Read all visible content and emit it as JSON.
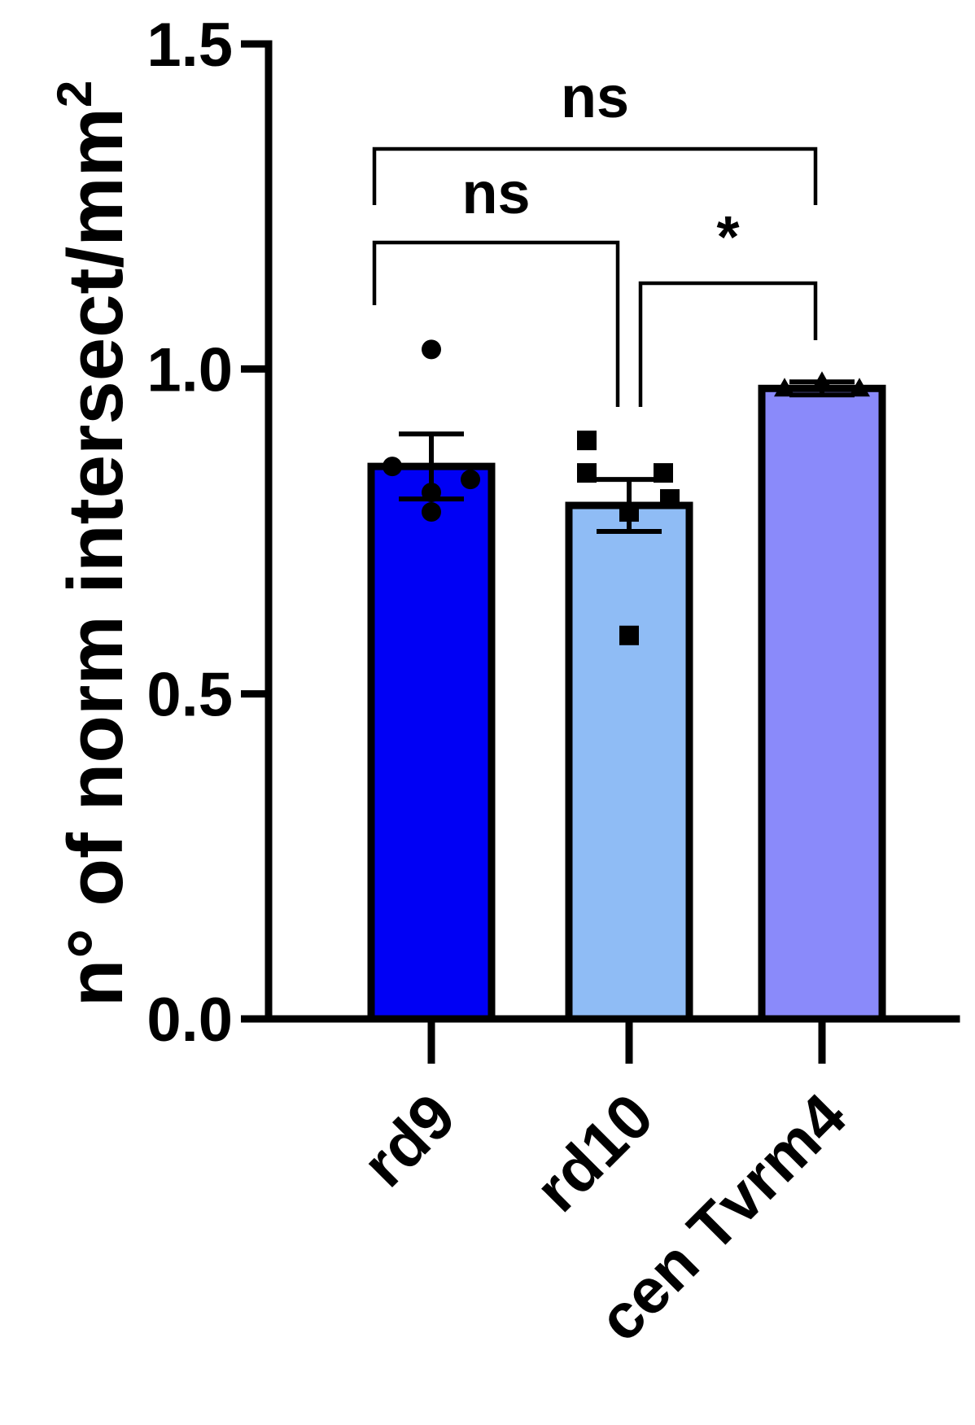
{
  "chart_data": {
    "type": "bar",
    "title": "",
    "xlabel": "",
    "ylabel": "n° of norm intersect/mm",
    "ylabel_superscript": "2",
    "ylim": [
      0,
      1.5
    ],
    "yticks": [
      0.0,
      0.5,
      1.0,
      1.5
    ],
    "ytick_labels": [
      "0.0",
      "0.5",
      "1.0",
      "1.5"
    ],
    "categories": [
      "rd9",
      "rd10",
      "cen Tvrm4"
    ],
    "values": [
      0.85,
      0.79,
      0.97
    ],
    "error": [
      0.05,
      0.04,
      0.01
    ],
    "colors": [
      "#0000f5",
      "#8fbcf5",
      "#8a8afa"
    ],
    "marker_shapes": [
      "circle",
      "square",
      "triangle"
    ],
    "points": [
      [
        1.03,
        0.85,
        0.81,
        0.83,
        0.78
      ],
      [
        0.89,
        0.84,
        0.84,
        0.8,
        0.78,
        0.59
      ],
      [
        0.97,
        0.98,
        0.97
      ]
    ],
    "significance": [
      {
        "from": 0,
        "to": 1,
        "label": "ns"
      },
      {
        "from": 0,
        "to": 2,
        "label": "ns"
      },
      {
        "from": 1,
        "to": 2,
        "label": "*"
      }
    ],
    "grid": false,
    "legend": "none"
  }
}
